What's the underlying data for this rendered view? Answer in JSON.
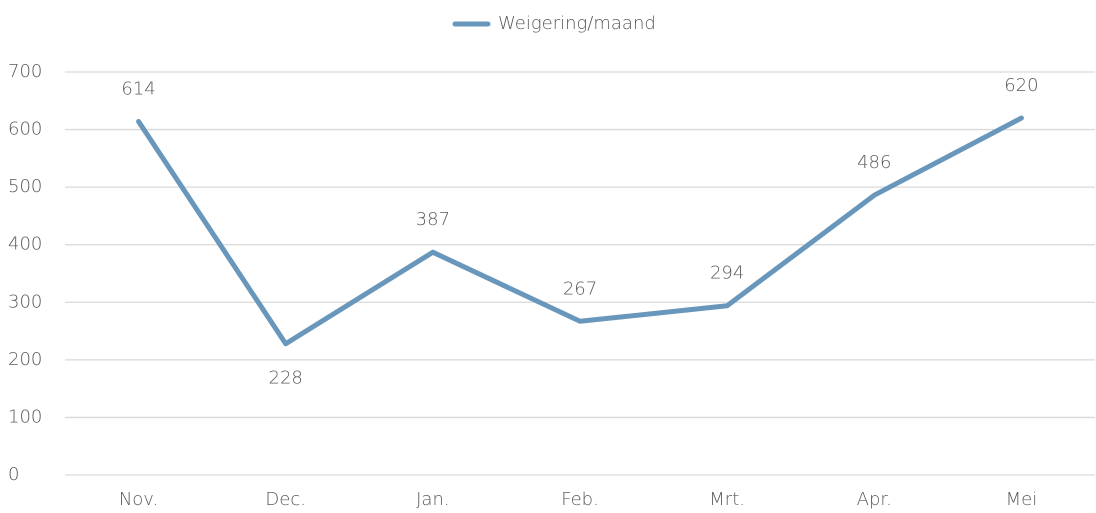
{
  "chart_data": {
    "type": "line",
    "categories": [
      "Nov.",
      "Dec.",
      "Jan.",
      "Feb.",
      "Mrt.",
      "Apr.",
      "Mei"
    ],
    "series": [
      {
        "name": "Weigering/maand",
        "color": "#6897bb",
        "values": [
          614,
          228,
          387,
          267,
          294,
          486,
          620
        ]
      }
    ],
    "ylim": [
      0,
      700
    ],
    "yticks": [
      0,
      100,
      200,
      300,
      400,
      500,
      600,
      700
    ],
    "grid": true,
    "legend": "top"
  }
}
